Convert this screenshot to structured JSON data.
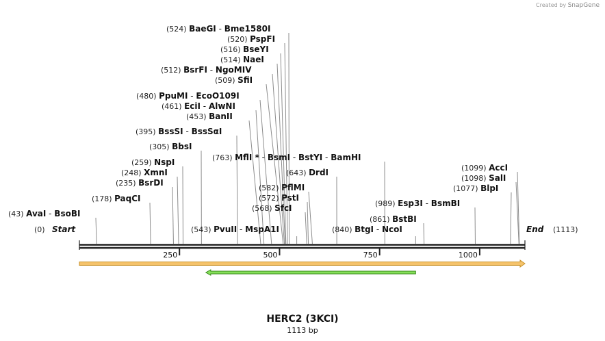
{
  "credit": {
    "prefix": "Created by",
    "brand": "SnapGene"
  },
  "title": "HERC2 (3KCI)",
  "length_label": "1113 bp",
  "chart_data": {
    "type": "plasmid-linear-map",
    "sequence_length": 1113,
    "axis": {
      "min": 0,
      "max": 1113,
      "ticks": [
        250,
        500,
        750,
        1000
      ]
    },
    "start_label": {
      "position": "(0)",
      "name": "Start"
    },
    "end_label": {
      "position": "(1113)",
      "name": "End"
    },
    "sites": [
      {
        "pos": 43,
        "pos_label": "(43)",
        "names": [
          "AvaI",
          "BsoBI"
        ]
      },
      {
        "pos": 178,
        "pos_label": "(178)",
        "names": [
          "PaqCI"
        ]
      },
      {
        "pos": 235,
        "pos_label": "(235)",
        "names": [
          "BsrDI"
        ]
      },
      {
        "pos": 248,
        "pos_label": "(248)",
        "names": [
          "XmnI"
        ]
      },
      {
        "pos": 259,
        "pos_label": "(259)",
        "names": [
          "NspI"
        ]
      },
      {
        "pos": 305,
        "pos_label": "(305)",
        "names": [
          "BbsI"
        ]
      },
      {
        "pos": 395,
        "pos_label": "(395)",
        "names": [
          "BssSI",
          "BssSαI"
        ]
      },
      {
        "pos": 453,
        "pos_label": "(453)",
        "names": [
          "BanII"
        ]
      },
      {
        "pos": 461,
        "pos_label": "(461)",
        "names": [
          "EciI",
          "AlwNI"
        ]
      },
      {
        "pos": 480,
        "pos_label": "(480)",
        "names": [
          "PpuMI",
          "EcoO109I"
        ]
      },
      {
        "pos": 509,
        "pos_label": "(509)",
        "names": [
          "SfiI"
        ]
      },
      {
        "pos": 512,
        "pos_label": "(512)",
        "names": [
          "BsrFI",
          "NgoMIV"
        ]
      },
      {
        "pos": 514,
        "pos_label": "(514)",
        "names": [
          "NaeI"
        ]
      },
      {
        "pos": 516,
        "pos_label": "(516)",
        "names": [
          "BseYI"
        ]
      },
      {
        "pos": 520,
        "pos_label": "(520)",
        "names": [
          "PspFI"
        ]
      },
      {
        "pos": 524,
        "pos_label": "(524)",
        "names": [
          "BaeGI",
          "Bme1580I"
        ]
      },
      {
        "pos": 543,
        "pos_label": "(543)",
        "names": [
          "PvuII",
          "MspA1I"
        ]
      },
      {
        "pos": 568,
        "pos_label": "(568)",
        "names": [
          "SfcI"
        ]
      },
      {
        "pos": 572,
        "pos_label": "(572)",
        "names": [
          "PstI"
        ]
      },
      {
        "pos": 582,
        "pos_label": "(582)",
        "names": [
          "PflMI"
        ]
      },
      {
        "pos": 643,
        "pos_label": "(643)",
        "names": [
          "DrdI"
        ]
      },
      {
        "pos": 763,
        "pos_label": "(763)",
        "names": [
          "MflI *",
          "BsmI",
          "BstYI",
          "BamHI"
        ]
      },
      {
        "pos": 840,
        "pos_label": "(840)",
        "names": [
          "BtgI",
          "NcoI"
        ]
      },
      {
        "pos": 861,
        "pos_label": "(861)",
        "names": [
          "BstBI"
        ]
      },
      {
        "pos": 989,
        "pos_label": "(989)",
        "names": [
          "Esp3I",
          "BsmBI"
        ]
      },
      {
        "pos": 1077,
        "pos_label": "(1077)",
        "names": [
          "BlpI"
        ]
      },
      {
        "pos": 1098,
        "pos_label": "(1098)",
        "names": [
          "SalI"
        ]
      },
      {
        "pos": 1099,
        "pos_label": "(1099)",
        "names": [
          "AccI"
        ]
      }
    ],
    "features": [
      {
        "name": "orange-feature",
        "start": 0,
        "end": 1113,
        "direction": "forward",
        "color": "#f5c36b",
        "stroke": "#c8922a"
      },
      {
        "name": "green-feature",
        "start": 316,
        "end": 840,
        "direction": "reverse",
        "color": "#86e05a",
        "stroke": "#3b8a1f"
      }
    ],
    "colors": {
      "backbone": "#222222",
      "line": "#8c8c8c",
      "text": "#111111",
      "position_text": "#222222"
    }
  }
}
